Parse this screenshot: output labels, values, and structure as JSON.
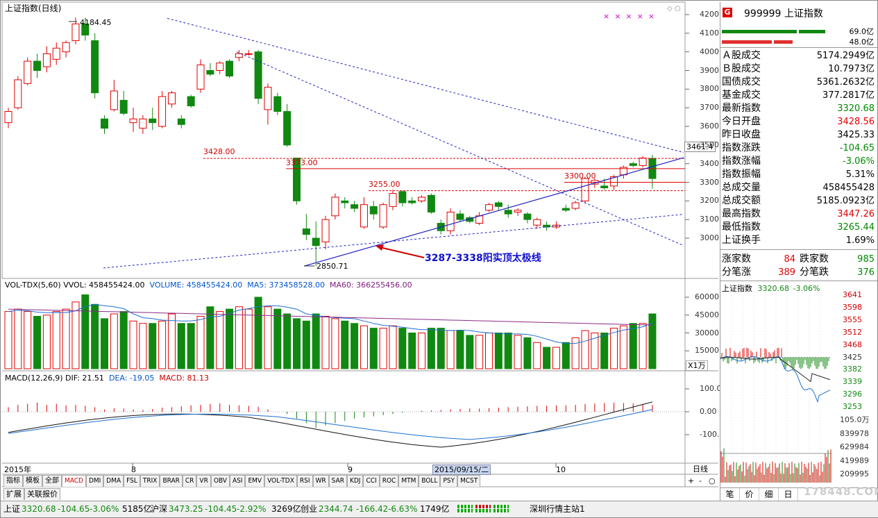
{
  "chart": {
    "title": "上证指数(日线)",
    "high_label": "4184.45",
    "low_label": "2850.71",
    "price_marker": "3461.4",
    "marks": [
      "×",
      "×",
      "×",
      "×",
      "×"
    ],
    "levels": [
      {
        "label": "3428.00",
        "value": 3428
      },
      {
        "label": "3373.00",
        "value": 3373
      },
      {
        "label": "3255.00",
        "value": 3255
      },
      {
        "label": "3300.00",
        "value": 3300
      }
    ],
    "annotation": "3287-3338阳实顶太极线",
    "price_axis": [
      "4200",
      "4100",
      "4000",
      "3900",
      "3800",
      "3700",
      "3600",
      "3500",
      "3400",
      "3300",
      "3200",
      "3100",
      "3000"
    ],
    "date_labels": [
      "2015年",
      "8",
      "9",
      "2015/09/15/二",
      "10"
    ],
    "colors": {
      "up": "#e00000",
      "down": "#118811",
      "bg": "#ffffff"
    }
  },
  "volume": {
    "title": "VOL-TDX(5,60)",
    "vvol": "VVOL: 458455424.00",
    "volume": "VOLUME: 458455424.00",
    "ma5": "MA5: 373458528.00",
    "ma60": "MA60: 366255456.00",
    "axis": [
      "60000",
      "45000",
      "30000",
      "15000"
    ],
    "unit": "X1万"
  },
  "macd": {
    "title": "MACD(12,26,9)",
    "dif": "DIF: 21.51",
    "dea": "DEA: -19.05",
    "macd": "MACD: 81.13",
    "axis": [
      "100.0",
      "0.00",
      "-100.0"
    ]
  },
  "period": "日线",
  "zoom": {
    "plus": "+",
    "minus": "-",
    "circle": "○"
  },
  "tabs": [
    "指标",
    "模板",
    "全部",
    "MACD",
    "DMI",
    "DMA",
    "FSL",
    "TRIX",
    "BRAR",
    "CR",
    "VR",
    "OBV",
    "ASI",
    "EMV",
    "VOL-TDX",
    "RSI",
    "WR",
    "SAR",
    "KDJ",
    "CCI",
    "ROC",
    "MTM",
    "BOLL",
    "PSY",
    "MCST"
  ],
  "subtabs": [
    "扩展",
    "关联报价"
  ],
  "quote": {
    "badge": "G",
    "code_name": "999999 上证指数",
    "bar_top": "69.0亿",
    "bar_bottom": "48.0亿",
    "rows": [
      {
        "k": "Ａ股成交",
        "v": "5174.2949亿",
        "c": ""
      },
      {
        "k": "Ｂ股成交",
        "v": "10.7973亿",
        "c": ""
      },
      {
        "k": "国债成交",
        "v": "5361.2632亿",
        "c": ""
      },
      {
        "k": "基金成交",
        "v": "377.2817亿",
        "c": ""
      },
      {
        "k": "最新指数",
        "v": "3320.68",
        "c": "green"
      },
      {
        "k": "今日开盘",
        "v": "3428.56",
        "c": "red"
      },
      {
        "k": "昨日收盘",
        "v": "3425.33",
        "c": ""
      },
      {
        "k": "指数涨跌",
        "v": "-104.65",
        "c": "green"
      },
      {
        "k": "指数涨幅",
        "v": "-3.06%",
        "c": "green"
      },
      {
        "k": "指数振幅",
        "v": "5.31%",
        "c": ""
      },
      {
        "k": "总成交量",
        "v": "458455428",
        "c": ""
      },
      {
        "k": "总成交额",
        "v": "5185.0923亿",
        "c": ""
      },
      {
        "k": "最高指数",
        "v": "3447.26",
        "c": "red"
      },
      {
        "k": "最低指数",
        "v": "3265.44",
        "c": "green"
      },
      {
        "k": "上证换手",
        "v": "1.69%",
        "c": ""
      }
    ],
    "counts": [
      {
        "k1": "涨家数",
        "v1": "84",
        "k2": "跌家数",
        "v2": "985"
      },
      {
        "k1": "分笔涨",
        "v1": "389",
        "k2": "分笔跌",
        "v2": "376"
      }
    ],
    "mini_title": "上证指数",
    "mini_price": "3320.68",
    "mini_change": "-3.06%",
    "mini_axis": [
      "3641",
      "3598",
      "3555",
      "3512",
      "3468",
      "3425",
      "3382",
      "3339",
      "3296",
      "3253"
    ],
    "mini_vol_axis": [
      "105.0万",
      "839978",
      "629984",
      "419989",
      "209995"
    ],
    "mini_tabs": [
      "笔",
      "价",
      "细",
      "日"
    ],
    "watermark": "178448.COM"
  },
  "status": {
    "sh_name": "上证",
    "sh_price": "3320.68",
    "sh_change": "-104.65",
    "sh_pct": "-3.06%",
    "sh_amount": "5185亿",
    "hs_name": "沪深",
    "hs_price": "3473.25",
    "hs_change": "-104.45",
    "hs_pct": "-2.92%",
    "hs_amount": "3269亿",
    "cy_name": "创业",
    "cy_price": "2344.74",
    "cy_change": "-166.42",
    "cy_pct": "-6.63%",
    "cy_amount": "1749亿",
    "server": "深圳行情主站1"
  }
}
